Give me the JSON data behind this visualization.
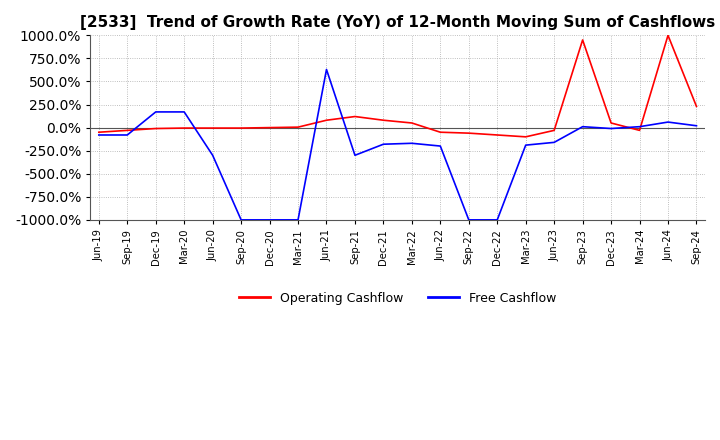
{
  "title": "[2533]  Trend of Growth Rate (YoY) of 12-Month Moving Sum of Cashflows",
  "title_fontsize": 11,
  "ylim": [
    -1000,
    1000
  ],
  "yticks": [
    1000.0,
    750.0,
    500.0,
    250.0,
    0.0,
    -250.0,
    -500.0,
    -750.0,
    -1000.0
  ],
  "background_color": "#ffffff",
  "grid_color": "#aaaaaa",
  "legend_labels": [
    "Operating Cashflow",
    "Free Cashflow"
  ],
  "legend_colors": [
    "red",
    "blue"
  ],
  "x_labels": [
    "Jun-19",
    "Sep-19",
    "Dec-19",
    "Mar-20",
    "Jun-20",
    "Sep-20",
    "Dec-20",
    "Mar-21",
    "Jun-21",
    "Sep-21",
    "Dec-21",
    "Mar-22",
    "Jun-22",
    "Sep-22",
    "Dec-22",
    "Mar-23",
    "Jun-23",
    "Sep-23",
    "Dec-23",
    "Mar-24",
    "Jun-24",
    "Sep-24"
  ],
  "operating_cashflow": [
    -50,
    -30,
    -10,
    -5,
    -5,
    -5,
    0,
    5,
    80,
    120,
    80,
    50,
    -50,
    -60,
    -80,
    -100,
    -30,
    950,
    50,
    -30,
    1000,
    230
  ],
  "free_cashflow": [
    -80,
    -80,
    170,
    170,
    -300,
    -1000,
    -1000,
    -1000,
    630,
    -300,
    -180,
    -170,
    -200,
    -1000,
    -1000,
    -190,
    -160,
    10,
    -10,
    10,
    60,
    20
  ]
}
